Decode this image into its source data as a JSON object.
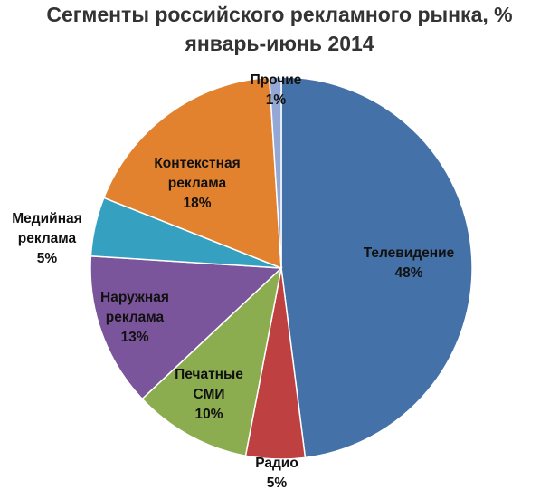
{
  "chart_data": {
    "type": "pie",
    "title": "Сегменты российского рекламного рынка, %",
    "subtitle": "январь-июнь 2014",
    "slices": [
      {
        "label": "Телевидение",
        "value": 48,
        "value_label": "48%",
        "color": "#4472a8"
      },
      {
        "label": "Радио",
        "value": 5,
        "value_label": "5%",
        "color": "#bf4040"
      },
      {
        "label": "Печатные СМИ",
        "value": 10,
        "value_label": "10%",
        "color": "#8cad4f"
      },
      {
        "label": "Наружная реклама",
        "value": 13,
        "value_label": "13%",
        "color": "#7b559b"
      },
      {
        "label": "Медийная реклама",
        "value": 5,
        "value_label": "5%",
        "color": "#36a0c0"
      },
      {
        "label": "Контекстная реклама",
        "value": 18,
        "value_label": "18%",
        "color": "#e2822f"
      },
      {
        "label": "Прочие",
        "value": 1,
        "value_label": "1%",
        "color": "#93a8d4"
      }
    ]
  }
}
